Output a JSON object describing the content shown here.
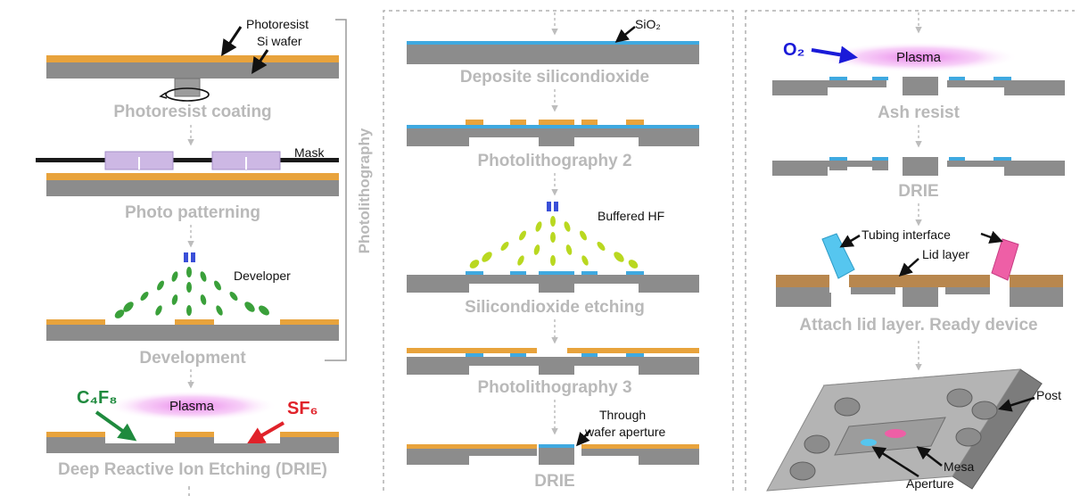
{
  "column1": {
    "labels": {
      "photoresist": "Photoresist",
      "si_wafer": "Si wafer",
      "mask": "Mask",
      "developer": "Developer",
      "plasma": "Plasma"
    },
    "gases": {
      "c4f8": "C₄F₈",
      "sf6": "SF₆"
    },
    "steps": [
      "Photoresist coating",
      "Photo patterning",
      "Development",
      "Deep Reactive Ion Etching (DRIE)"
    ],
    "group_label": "Photolithography"
  },
  "column2": {
    "labels": {
      "sio2": "SiO₂",
      "buffered_hf": "Buffered HF",
      "through_line1": "Through",
      "through_line2": "wafer aperture"
    },
    "steps": [
      "Deposite silicondioxide",
      "Photolithography 2",
      "Silicondioxide etching",
      "Photolithography 3",
      "DRIE"
    ]
  },
  "column3": {
    "labels": {
      "o2": "O₂",
      "plasma": "Plasma",
      "tubing_interface": "Tubing interface",
      "lid_layer": "Lid layer",
      "post": "Post",
      "mesa": "Mesa",
      "aperture": "Aperture"
    },
    "steps": [
      "Ash resist",
      "DRIE",
      "Attach lid layer. Ready device"
    ]
  },
  "colors": {
    "silicon": "#8c8c8c",
    "photoresist": "#e8a33c",
    "oxide": "#3fa9e0",
    "mask": "#1a1a1a",
    "mask_window": "#cdb8e4",
    "developer_drop": "#3aa03a",
    "hf_drop": "#b9d820",
    "plasma": "#e77be8",
    "lid": "#b8874e",
    "step_text": "#b9b9b9",
    "tube_left": "#56c6ef",
    "tube_right": "#ee5fa6"
  }
}
